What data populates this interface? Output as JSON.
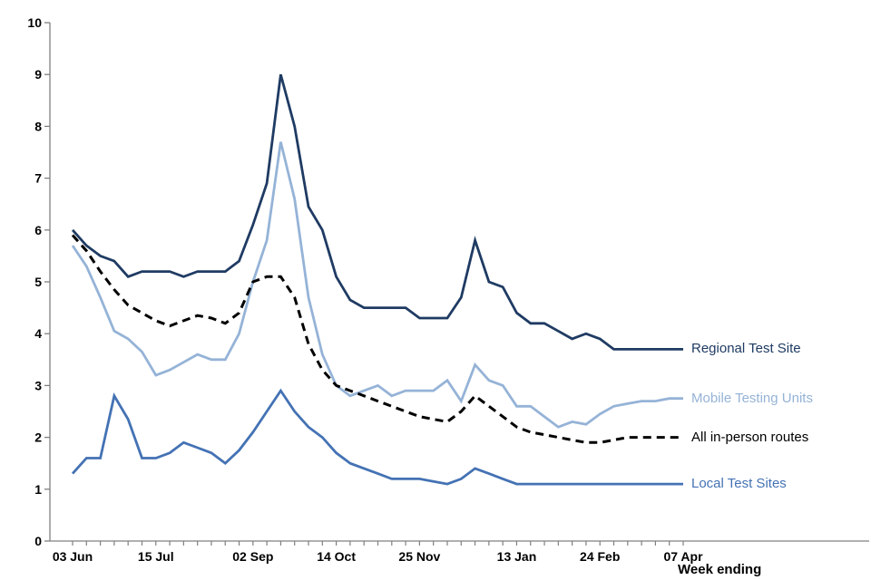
{
  "chart_data": {
    "type": "line",
    "title": "",
    "xlabel": "Week ending",
    "ylabel": "",
    "x_is_weekly": true,
    "n_points": 45,
    "x_tick_labels": [
      "03 Jun",
      "15 Jul",
      "02 Sep",
      "14 Oct",
      "25 Nov",
      "13 Jan",
      "24 Feb",
      "07 Apr"
    ],
    "x_tick_weeks": [
      0,
      6,
      13,
      19,
      25,
      32,
      38,
      44
    ],
    "y_ticks": [
      0,
      1,
      2,
      3,
      4,
      5,
      6,
      7,
      8,
      9,
      10
    ],
    "ylim": [
      0,
      10
    ],
    "grid": false,
    "legend_position": "right-of-line-ends",
    "axis_color": "#808080",
    "tick_label_color": "#000000",
    "series": [
      {
        "name": "Regional Test Site",
        "color": "#1f3b63",
        "style": "solid",
        "values": [
          6.0,
          5.7,
          5.5,
          5.4,
          5.1,
          5.2,
          5.2,
          5.2,
          5.1,
          5.2,
          5.2,
          5.2,
          5.4,
          6.1,
          6.9,
          9.0,
          8.0,
          6.45,
          6.0,
          5.1,
          4.65,
          4.5,
          4.5,
          4.5,
          4.5,
          4.3,
          4.3,
          4.3,
          4.7,
          5.8,
          5.0,
          4.9,
          4.4,
          4.2,
          4.2,
          4.05,
          3.9,
          4.0,
          3.9,
          3.7,
          3.7,
          3.7,
          3.7,
          3.7,
          3.7
        ]
      },
      {
        "name": "Mobile Testing Units",
        "color": "#95b3d7",
        "style": "solid",
        "values": [
          5.7,
          5.3,
          4.7,
          4.05,
          3.9,
          3.65,
          3.2,
          3.3,
          3.45,
          3.6,
          3.5,
          3.5,
          4.0,
          5.0,
          5.8,
          7.7,
          6.6,
          4.7,
          3.6,
          3.0,
          2.8,
          2.9,
          3.0,
          2.8,
          2.9,
          2.9,
          2.9,
          3.1,
          2.7,
          3.4,
          3.1,
          3.0,
          2.6,
          2.6,
          2.4,
          2.2,
          2.3,
          2.25,
          2.45,
          2.6,
          2.65,
          2.7,
          2.7,
          2.75,
          2.75
        ]
      },
      {
        "name": "All in-person routes",
        "color": "#000000",
        "style": "dashed",
        "values": [
          5.9,
          5.6,
          5.2,
          4.85,
          4.55,
          4.4,
          4.25,
          4.15,
          4.25,
          4.35,
          4.3,
          4.2,
          4.4,
          5.0,
          5.1,
          5.1,
          4.7,
          3.8,
          3.3,
          3.0,
          2.9,
          2.8,
          2.7,
          2.6,
          2.5,
          2.4,
          2.35,
          2.3,
          2.5,
          2.8,
          2.6,
          2.4,
          2.2,
          2.1,
          2.05,
          2.0,
          1.95,
          1.9,
          1.9,
          1.95,
          2.0,
          2.0,
          2.0,
          2.0,
          2.0
        ]
      },
      {
        "name": "Local Test Sites",
        "color": "#4472b4",
        "style": "solid",
        "values": [
          1.3,
          1.6,
          1.6,
          2.8,
          2.35,
          1.6,
          1.6,
          1.7,
          1.9,
          1.8,
          1.7,
          1.5,
          1.75,
          2.1,
          2.5,
          2.9,
          2.5,
          2.2,
          2.0,
          1.7,
          1.5,
          1.4,
          1.3,
          1.2,
          1.2,
          1.2,
          1.15,
          1.1,
          1.2,
          1.4,
          1.3,
          1.2,
          1.1,
          1.1,
          1.1,
          1.1,
          1.1,
          1.1,
          1.1,
          1.1,
          1.1,
          1.1,
          1.1,
          1.1,
          1.1
        ]
      }
    ]
  }
}
